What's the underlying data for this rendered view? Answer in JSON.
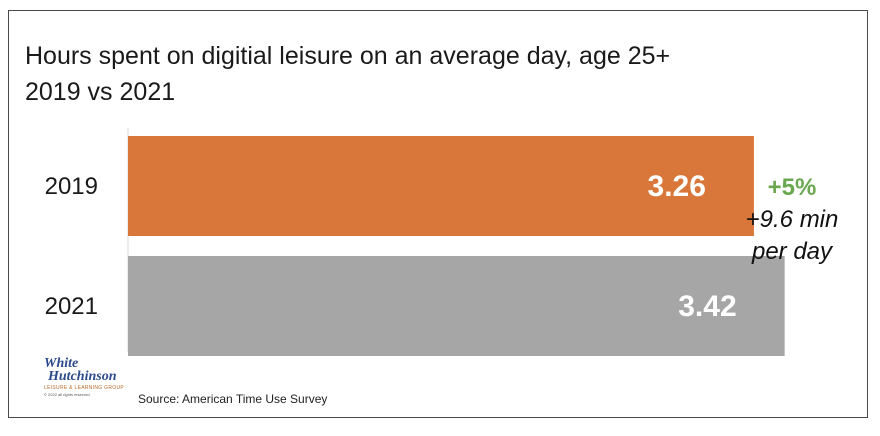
{
  "chart_data": {
    "type": "bar",
    "orientation": "horizontal",
    "title": "Hours spent on digitial leisure on an average day, age 25+",
    "subtitle": "2019 vs 2021",
    "categories": [
      "2019",
      "2021"
    ],
    "values": [
      3.26,
      3.42
    ],
    "value_labels": [
      "3.26",
      "3.42"
    ],
    "colors": [
      "#d9773a",
      "#a6a6a6"
    ],
    "xlim": [
      0,
      3.5
    ],
    "grid": false,
    "legend": "none",
    "annotations": [
      "+5%",
      "+9.6 min",
      "per day"
    ],
    "annotation_color": "#6aa84f",
    "source": "Source: American Time Use Survey"
  },
  "logo": {
    "line1": "White",
    "line2": "Hutchinson",
    "tagline": "LEISURE & LEARNING GROUP",
    "copyright": "© 2022 all rights reserved"
  }
}
